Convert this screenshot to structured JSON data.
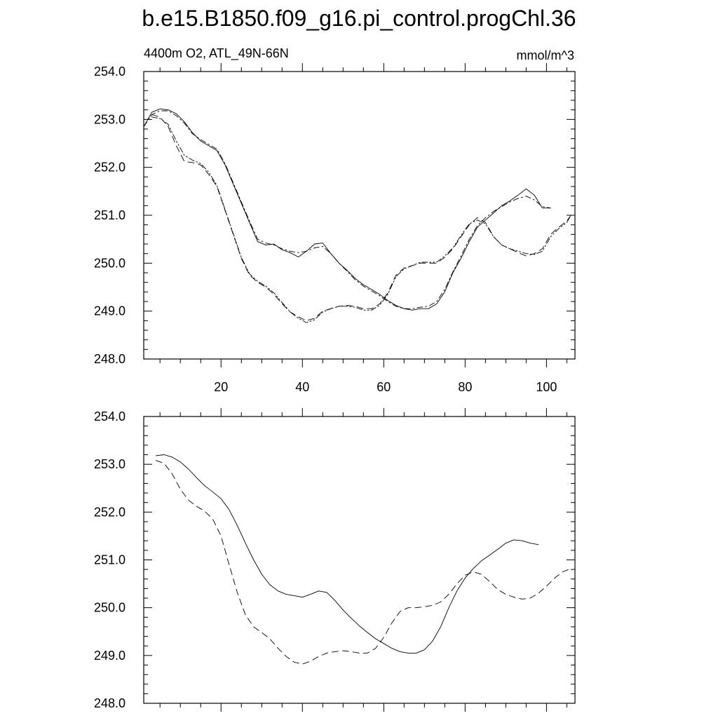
{
  "title": "b.e15.B1850.f09_g16.pi_control.progChl.36",
  "subtitle_left": "4400m O2, ATL_49N-66N",
  "subtitle_right": "mmol/m^3",
  "chart_data": [
    {
      "type": "line",
      "title": "",
      "xlabel": "",
      "ylabel": "",
      "xlim": [
        1,
        107
      ],
      "ylim": [
        248.0,
        254.0
      ],
      "xticks": [
        20,
        40,
        60,
        80,
        100
      ],
      "xtick_labels": [
        "20",
        "40",
        "60",
        "80",
        "100"
      ],
      "yticks": [
        248.0,
        249.0,
        250.0,
        251.0,
        252.0,
        253.0,
        254.0
      ],
      "ytick_labels": [
        "248.0",
        "249.0",
        "250.0",
        "251.0",
        "252.0",
        "253.0",
        "254.0"
      ],
      "grid": false,
      "legend": "none",
      "series": [
        {
          "style": "solid",
          "x": [
            1,
            3,
            5,
            7,
            9,
            11,
            13,
            15,
            17,
            19,
            21,
            23,
            25,
            27,
            29,
            31,
            33,
            35,
            37,
            39,
            41,
            43,
            45,
            47,
            49,
            51,
            53,
            55,
            57,
            59,
            61,
            63,
            65,
            67,
            69,
            71,
            73,
            75,
            77,
            79,
            81,
            83,
            85,
            87,
            89,
            91,
            93,
            95,
            97,
            99,
            101
          ],
          "y": [
            252.85,
            253.15,
            253.22,
            253.2,
            253.12,
            252.95,
            252.72,
            252.55,
            252.45,
            252.35,
            252.05,
            251.65,
            251.25,
            250.85,
            250.45,
            250.38,
            250.4,
            250.28,
            250.22,
            250.13,
            250.25,
            250.4,
            250.42,
            250.2,
            250.0,
            249.85,
            249.68,
            249.55,
            249.45,
            249.35,
            249.22,
            249.12,
            249.05,
            249.02,
            249.05,
            249.05,
            249.15,
            249.4,
            249.8,
            250.1,
            250.45,
            250.75,
            250.9,
            251.05,
            251.2,
            251.3,
            251.42,
            251.55,
            251.42,
            251.15,
            251.15
          ]
        },
        {
          "style": "dash-dot",
          "x": [
            1,
            3,
            5,
            7,
            9,
            11,
            13,
            15,
            17,
            19,
            21,
            23,
            25,
            27,
            29,
            31,
            33,
            35,
            37,
            39,
            41,
            43,
            45,
            47,
            49,
            51,
            53,
            55,
            57,
            59,
            61,
            63,
            65,
            67,
            69,
            71,
            73,
            75,
            77,
            79,
            81,
            83,
            85,
            87,
            89,
            91,
            93,
            95,
            97,
            99,
            101
          ],
          "y": [
            252.85,
            253.1,
            253.18,
            253.18,
            253.08,
            252.92,
            252.7,
            252.58,
            252.48,
            252.38,
            252.08,
            251.68,
            251.28,
            250.88,
            250.5,
            250.42,
            250.38,
            250.3,
            250.25,
            250.22,
            250.25,
            250.32,
            250.35,
            250.2,
            250.0,
            249.83,
            249.65,
            249.52,
            249.42,
            249.32,
            249.2,
            249.1,
            249.05,
            249.05,
            249.08,
            249.1,
            249.2,
            249.45,
            249.82,
            250.15,
            250.5,
            250.78,
            250.95,
            251.08,
            251.18,
            251.28,
            251.35,
            251.4,
            251.32,
            251.18,
            251.15
          ]
        },
        {
          "style": "dashed",
          "x": [
            3,
            5,
            7,
            9,
            11,
            13,
            15,
            17,
            19,
            21,
            23,
            25,
            27,
            29,
            31,
            33,
            35,
            37,
            39,
            41,
            43,
            45,
            47,
            49,
            51,
            53,
            55,
            57,
            59,
            61,
            63,
            65,
            67,
            69,
            71,
            73,
            75,
            77,
            79,
            81,
            83,
            85,
            87,
            89,
            91,
            93,
            95,
            97,
            99,
            101,
            103,
            105,
            106
          ],
          "y": [
            253.1,
            253.05,
            252.85,
            252.45,
            252.12,
            252.1,
            252.05,
            251.85,
            251.6,
            251.1,
            250.6,
            250.1,
            249.75,
            249.6,
            249.5,
            249.35,
            249.15,
            248.98,
            248.88,
            248.8,
            248.85,
            249.0,
            249.05,
            249.1,
            249.12,
            249.1,
            249.05,
            249.05,
            249.15,
            249.38,
            249.75,
            249.9,
            249.95,
            250.0,
            250.0,
            250.0,
            250.12,
            250.3,
            250.55,
            250.8,
            250.95,
            250.85,
            250.55,
            250.38,
            250.3,
            250.22,
            250.15,
            250.2,
            250.3,
            250.6,
            250.75,
            250.88,
            251.0
          ]
        },
        {
          "style": "dash-dot-dot",
          "x": [
            3,
            5,
            7,
            9,
            11,
            13,
            15,
            17,
            19,
            21,
            23,
            25,
            27,
            29,
            31,
            33,
            35,
            37,
            39,
            41,
            43,
            45,
            47,
            49,
            51,
            53,
            55,
            57,
            59,
            61,
            63,
            65,
            67,
            69,
            71,
            73,
            75,
            77,
            79,
            81,
            83,
            85,
            87,
            89,
            91,
            93,
            95,
            97,
            99,
            101,
            103,
            105,
            106
          ],
          "y": [
            253.05,
            253.02,
            252.9,
            252.55,
            252.25,
            252.15,
            252.08,
            251.9,
            251.62,
            251.12,
            250.62,
            250.12,
            249.78,
            249.62,
            249.52,
            249.38,
            249.18,
            248.98,
            248.85,
            248.76,
            248.82,
            248.98,
            249.05,
            249.1,
            249.1,
            249.08,
            249.02,
            249.02,
            249.12,
            249.35,
            249.72,
            249.88,
            249.95,
            250.02,
            250.02,
            250.02,
            250.15,
            250.32,
            250.58,
            250.82,
            250.9,
            250.82,
            250.55,
            250.38,
            250.3,
            250.25,
            250.2,
            250.18,
            250.25,
            250.55,
            250.72,
            250.85,
            251.0
          ]
        }
      ]
    },
    {
      "type": "line",
      "title": "",
      "xlabel": "",
      "ylabel": "",
      "xlim": [
        1,
        107
      ],
      "ylim": [
        248.0,
        254.0
      ],
      "xticks": [
        20,
        40,
        60,
        80,
        100
      ],
      "xtick_labels": [],
      "yticks": [
        248.0,
        249.0,
        250.0,
        251.0,
        252.0,
        253.0,
        254.0
      ],
      "ytick_labels": [
        "248.0",
        "249.0",
        "250.0",
        "251.0",
        "252.0",
        "253.0",
        "254.0"
      ],
      "grid": false,
      "legend": "none",
      "series": [
        {
          "style": "solid",
          "x": [
            4,
            6,
            8,
            10,
            12,
            14,
            16,
            18,
            20,
            22,
            24,
            26,
            28,
            30,
            32,
            34,
            36,
            38,
            40,
            42,
            44,
            46,
            48,
            50,
            52,
            54,
            56,
            58,
            60,
            62,
            64,
            66,
            68,
            70,
            72,
            74,
            76,
            78,
            80,
            82,
            84,
            86,
            88,
            90,
            92,
            94,
            96,
            98
          ],
          "y": [
            253.18,
            253.2,
            253.15,
            253.05,
            252.9,
            252.72,
            252.55,
            252.42,
            252.28,
            252.05,
            251.72,
            251.35,
            251.0,
            250.7,
            250.48,
            250.35,
            250.28,
            250.25,
            250.22,
            250.28,
            250.35,
            250.32,
            250.15,
            249.95,
            249.78,
            249.62,
            249.48,
            249.35,
            249.25,
            249.15,
            249.08,
            249.05,
            249.05,
            249.12,
            249.3,
            249.6,
            250.0,
            250.35,
            250.62,
            250.82,
            250.98,
            251.1,
            251.22,
            251.35,
            251.42,
            251.4,
            251.35,
            251.32
          ]
        },
        {
          "style": "dashed",
          "x": [
            4,
            6,
            8,
            10,
            12,
            14,
            16,
            18,
            20,
            22,
            24,
            26,
            28,
            30,
            32,
            34,
            36,
            38,
            40,
            42,
            44,
            46,
            48,
            50,
            52,
            54,
            56,
            58,
            60,
            62,
            64,
            66,
            68,
            70,
            72,
            74,
            76,
            78,
            80,
            82,
            84,
            86,
            88,
            90,
            92,
            94,
            96,
            98,
            100,
            102,
            104,
            106
          ],
          "y": [
            253.08,
            253.02,
            252.8,
            252.48,
            252.25,
            252.12,
            252.02,
            251.85,
            251.5,
            250.9,
            250.32,
            249.85,
            249.6,
            249.48,
            249.35,
            249.15,
            248.98,
            248.86,
            248.82,
            248.88,
            248.98,
            249.05,
            249.08,
            249.1,
            249.08,
            249.05,
            249.05,
            249.15,
            249.38,
            249.68,
            249.92,
            250.0,
            250.0,
            250.02,
            250.05,
            250.12,
            250.28,
            250.5,
            250.68,
            250.75,
            250.7,
            250.55,
            250.38,
            250.28,
            250.22,
            250.18,
            250.2,
            250.3,
            250.45,
            250.62,
            250.75,
            250.82
          ]
        }
      ]
    }
  ]
}
